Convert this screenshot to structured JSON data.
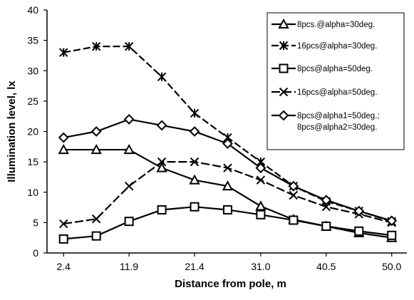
{
  "chart_data": {
    "type": "line",
    "title": "",
    "xlabel": "Distance from pole, m",
    "ylabel": "Illumination level, lx",
    "x": [
      2.4,
      7.15,
      11.9,
      16.65,
      21.4,
      26.2,
      31.0,
      35.75,
      40.5,
      45.25,
      50.0
    ],
    "x_tick_labels": [
      "2.4",
      "11.9",
      "21.4",
      "31.0",
      "40.5",
      "50.0"
    ],
    "x_tick_values": [
      2.4,
      11.9,
      21.4,
      31.0,
      40.5,
      50.0
    ],
    "ylim": [
      0,
      40
    ],
    "y_ticks": [
      "0",
      "5",
      "10",
      "15",
      "20",
      "25",
      "30",
      "35",
      "40"
    ],
    "grid": false,
    "legend_position": "top-right",
    "series": [
      {
        "name": "8pcs.@alpha=30deg.",
        "marker": "triangle",
        "values": [
          17,
          17,
          17,
          14,
          12,
          11,
          7.7,
          5.5,
          4.4,
          3.3,
          2.5
        ]
      },
      {
        "name": "16pcs@alpha=30deg.",
        "marker": "star",
        "values": [
          33,
          34,
          34,
          29,
          23,
          19,
          15,
          11,
          8.5,
          6.9,
          5.2
        ]
      },
      {
        "name": "8pcs@alpha=50deg.",
        "marker": "square",
        "values": [
          2.3,
          2.8,
          5.2,
          7.1,
          7.6,
          7.1,
          6.3,
          5.4,
          4.4,
          3.6,
          2.9
        ]
      },
      {
        "name": "16pcs@alpha=50deg.",
        "marker": "x",
        "values": [
          4.8,
          5.6,
          11,
          15,
          15,
          14,
          12,
          9.5,
          7.6,
          6.4,
          5.0
        ]
      },
      {
        "name": "8pcs@alpha1=50deg.;",
        "name_line2": "8pcs@alpha2=30deg.",
        "marker": "diamond",
        "values": [
          19,
          20,
          22,
          21,
          20,
          18,
          14,
          11,
          8.7,
          6.9,
          5.3
        ]
      }
    ]
  }
}
